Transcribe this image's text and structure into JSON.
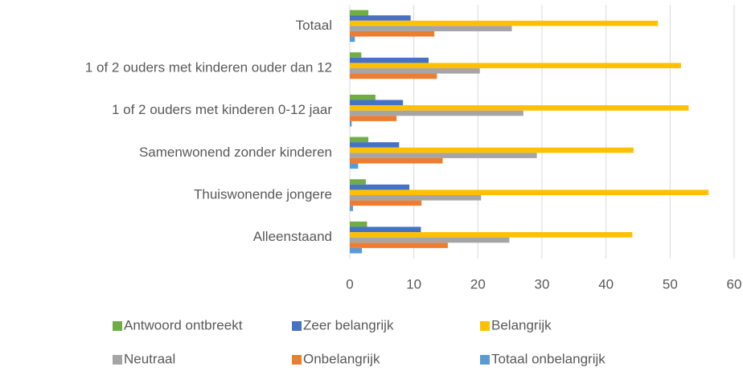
{
  "chart_data": {
    "type": "bar",
    "orientation": "horizontal",
    "categories": [
      "Totaal",
      "1 of 2 ouders met kinderen ouder dan 12",
      "1 of 2 ouders met kinderen 0-12 jaar",
      "Samenwonend zonder kinderen",
      "Thuiswonende jongere",
      "Alleenstaand"
    ],
    "series": [
      {
        "name": "Antwoord ontbreekt",
        "color": "#70ad47",
        "values": [
          2.9,
          1.8,
          4.0,
          2.9,
          2.5,
          2.7
        ]
      },
      {
        "name": "Zeer belangrijk",
        "color": "#4472c4",
        "values": [
          9.5,
          12.3,
          8.3,
          7.7,
          9.3,
          11.1
        ]
      },
      {
        "name": "Belangrijk",
        "color": "#ffc000",
        "values": [
          48.1,
          51.7,
          52.9,
          44.3,
          56.0,
          44.1
        ]
      },
      {
        "name": "Neutraal",
        "color": "#a5a5a5",
        "values": [
          25.3,
          20.3,
          27.1,
          29.2,
          20.5,
          24.9
        ]
      },
      {
        "name": "Onbelangrijk",
        "color": "#ed7d31",
        "values": [
          13.2,
          13.6,
          7.3,
          14.5,
          11.2,
          15.3
        ]
      },
      {
        "name": "Totaal onbelangrijk",
        "color": "#5b9bd5",
        "values": [
          0.8,
          0,
          0.3,
          1.3,
          0.5,
          1.9
        ]
      }
    ],
    "xlim": [
      0,
      60
    ],
    "xticks": [
      0,
      10,
      20,
      30,
      40,
      50,
      60
    ],
    "grid": true,
    "legend": "bottom"
  }
}
